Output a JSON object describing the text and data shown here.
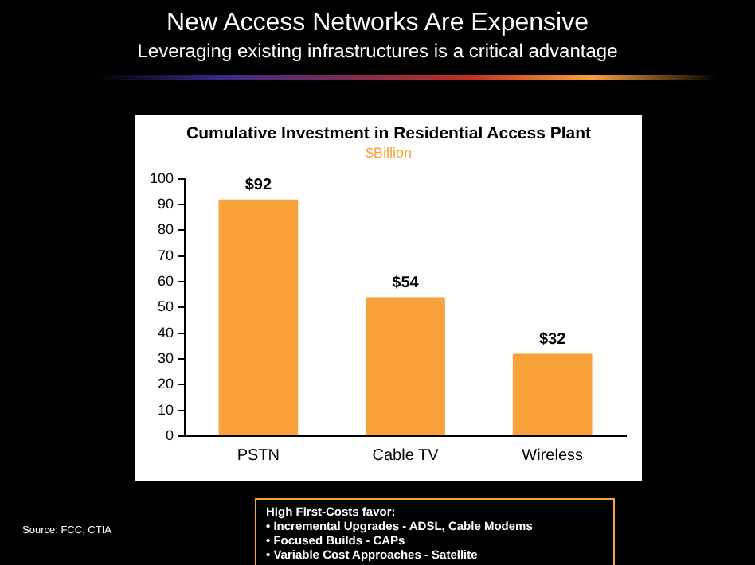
{
  "chart_data": {
    "type": "bar",
    "title": "New Access Networks Are Expensive",
    "subtitle": "Leveraging existing infrastructures is a critical advantage",
    "categories": [
      "PSTN",
      "Cable TV",
      "Wireless"
    ],
    "values": [
      92,
      54,
      32
    ],
    "value_labels": [
      "$92",
      "$54",
      "$32"
    ],
    "color": "#f9a13a",
    "ylim": [
      0,
      100
    ],
    "yticks": [
      0,
      10,
      20,
      30,
      40,
      50,
      60,
      70,
      80,
      90,
      100
    ],
    "grid": false,
    "legend": false,
    "annotations": [
      "Cumulative Investment in Residential Access Plant",
      "$Billion",
      "High First-Costs favor:",
      "• Incremental Upgrades - ADSL, Cable Modems",
      "• Focused Builds - CAPs",
      "• Variable Cost Approaches - Satellite",
      "Source: FCC, CTIA"
    ]
  }
}
